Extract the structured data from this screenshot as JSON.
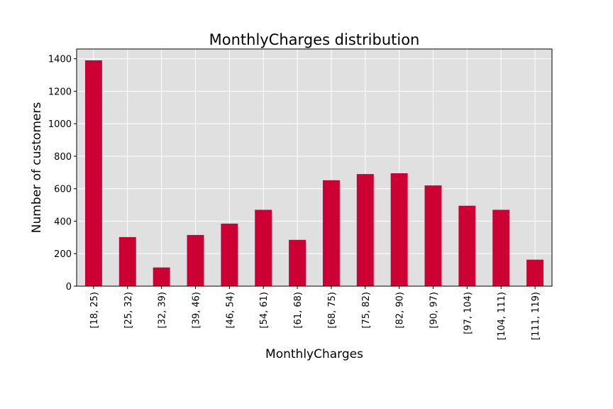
{
  "chart_data": {
    "type": "bar",
    "title": "MonthlyCharges distribution",
    "xlabel": "MonthlyCharges",
    "ylabel": "Number of customers",
    "categories": [
      "[18, 25)",
      "[25, 32)",
      "[32, 39)",
      "[39, 46)",
      "[46, 54)",
      "[54, 61)",
      "[61, 68)",
      "[68, 75)",
      "[75, 82)",
      "[82, 90)",
      "[90, 97)",
      "[97, 104)",
      "[104, 111)",
      "[111, 119)"
    ],
    "values": [
      1390,
      302,
      115,
      315,
      385,
      470,
      285,
      652,
      690,
      695,
      620,
      495,
      470,
      163
    ],
    "ylim": [
      0,
      1460
    ],
    "yticks": [
      0,
      200,
      400,
      600,
      800,
      1000,
      1200,
      1400
    ],
    "ytick_labels": [
      "0",
      "200",
      "400",
      "600",
      "800",
      "1000",
      "1200",
      "1400"
    ],
    "grid": true,
    "bar_color": "#cc0033",
    "background_color": "#e0e0e0",
    "grid_color": "#ffffff"
  }
}
